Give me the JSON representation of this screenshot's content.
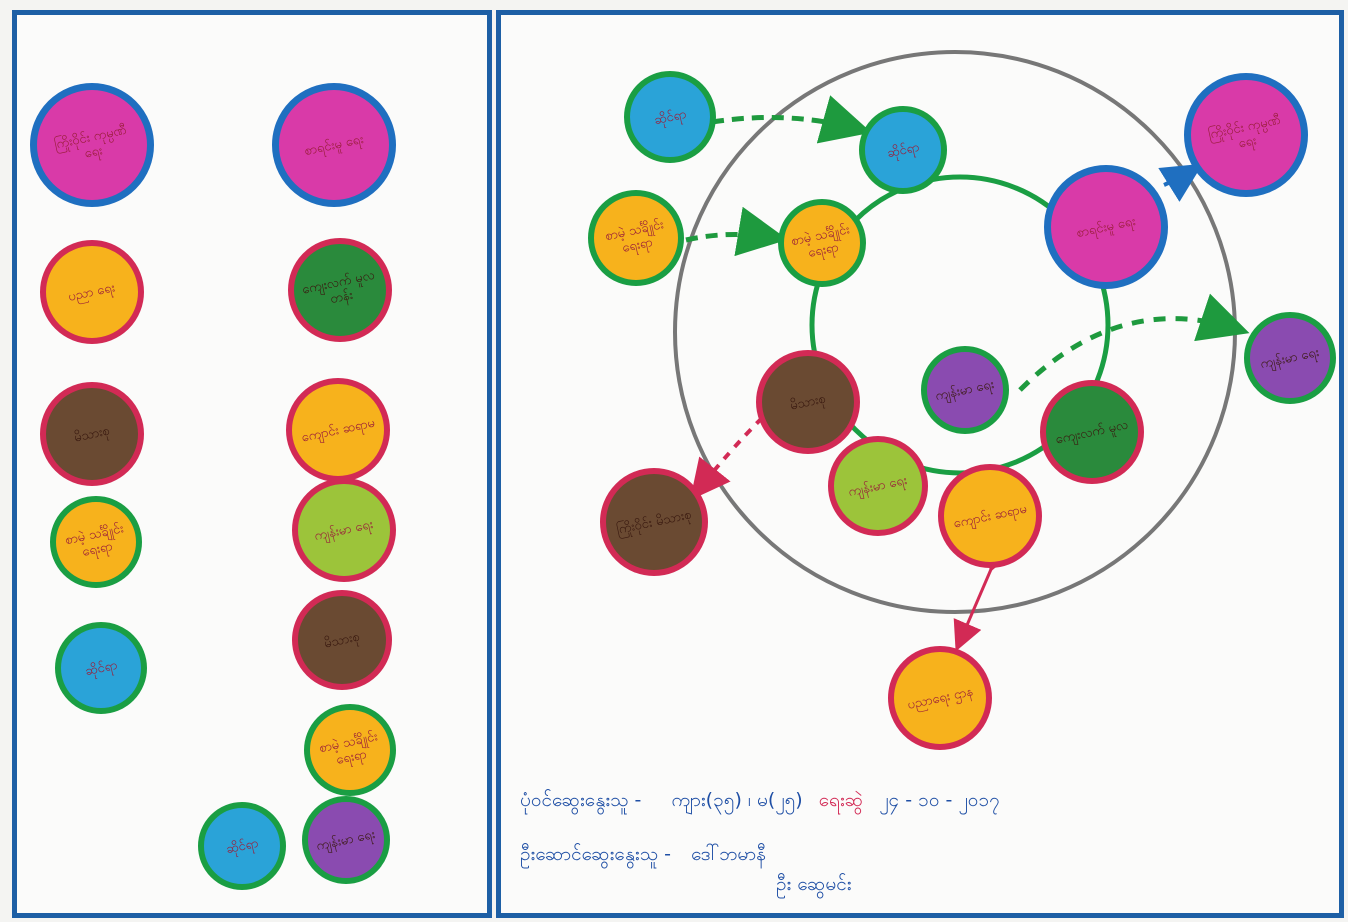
{
  "colors": {
    "panel_border": "#1d5fa5",
    "magenta": "#d93aa8",
    "orange": "#f7b21c",
    "brown": "#6a4a32",
    "green": "#2a8a3c",
    "lime": "#9cc43a",
    "blue": "#2aa3d8",
    "purple": "#8a4bb0",
    "ring_blue": "#1f6fc0",
    "ring_red": "#d22a55",
    "ring_green": "#1a9e43",
    "arrow_red": "#d22a55",
    "arrow_green": "#1e9a3e",
    "outer_ring": "#777777"
  },
  "left_panel": {
    "nodes": [
      {
        "id": "L1",
        "label": "ကြိုးဝိုင်း ကုမ္ပဏီ ရေး",
        "fill": "magenta",
        "ring": "ring_blue"
      },
      {
        "id": "L2",
        "label": "ပညာ ရေး",
        "fill": "orange",
        "ring": "ring_red"
      },
      {
        "id": "L3",
        "label": "မိသားစု",
        "fill": "brown",
        "ring": "ring_red"
      },
      {
        "id": "L4",
        "label": "စာမဲ့ သင်္ချိုင်း ရေးရာ",
        "fill": "orange",
        "ring": "ring_green"
      },
      {
        "id": "L5",
        "label": "ဆိုင်ရာ",
        "fill": "blue",
        "ring": "ring_green"
      },
      {
        "id": "R1",
        "label": "စာရင်းမူ ရေး",
        "fill": "magenta",
        "ring": "ring_blue"
      },
      {
        "id": "R2",
        "label": "ကျေးလက် မူလတန်း",
        "fill": "green",
        "ring": "ring_red"
      },
      {
        "id": "R3",
        "label": "ကျောင်း ဆရာမ",
        "fill": "orange",
        "ring": "ring_red"
      },
      {
        "id": "R4",
        "label": "ကျန်းမာ ရေး",
        "fill": "lime",
        "ring": "ring_red"
      },
      {
        "id": "R5",
        "label": "မိသားစု",
        "fill": "brown",
        "ring": "ring_red"
      },
      {
        "id": "R6",
        "label": "စာမဲ့ သင်္ချိုင်း ရေးရာ",
        "fill": "orange",
        "ring": "ring_green"
      },
      {
        "id": "R7",
        "label": "ဆိုင်ရာ",
        "fill": "blue",
        "ring": "ring_green"
      },
      {
        "id": "R8",
        "label": "ကျန်းမာ ရေး",
        "fill": "purple",
        "ring": "ring_green"
      }
    ]
  },
  "right_panel": {
    "nodes": [
      {
        "id": "A",
        "label": "ဆိုင်ရာ",
        "fill": "blue",
        "ring": "ring_green"
      },
      {
        "id": "B",
        "label": "ဆိုင်ရာ",
        "fill": "blue",
        "ring": "ring_green"
      },
      {
        "id": "C",
        "label": "စာမဲ့ သင်္ချိုင်း ရေးရာ",
        "fill": "orange",
        "ring": "ring_green"
      },
      {
        "id": "D",
        "label": "စာမဲ့ သင်္ချိုင်း ရေးရာ",
        "fill": "orange",
        "ring": "ring_green"
      },
      {
        "id": "E",
        "label": "စာရင်းမူ ရေး",
        "fill": "magenta",
        "ring": "ring_blue"
      },
      {
        "id": "F",
        "label": "ကြိုးဝိုင်း ကုမ္ပဏီ ရေး",
        "fill": "magenta",
        "ring": "ring_blue"
      },
      {
        "id": "G",
        "label": "ကျန်းမာ ရေး",
        "fill": "purple",
        "ring": "ring_green"
      },
      {
        "id": "H",
        "label": "ကျန်းမာ ရေး",
        "fill": "purple",
        "ring": "ring_green"
      },
      {
        "id": "I",
        "label": "မိသားစု",
        "fill": "brown",
        "ring": "ring_red"
      },
      {
        "id": "J",
        "label": "ကျေးလက် မူလ",
        "fill": "green",
        "ring": "ring_red"
      },
      {
        "id": "K",
        "label": "ကြိုးဝိုင်း မိသားစု",
        "fill": "brown",
        "ring": "ring_red"
      },
      {
        "id": "L",
        "label": "ကျန်းမာ ရေး",
        "fill": "lime",
        "ring": "ring_red"
      },
      {
        "id": "M",
        "label": "ကျောင်း ဆရာမ",
        "fill": "orange",
        "ring": "ring_red"
      },
      {
        "id": "N",
        "label": "ပညာရေး ဌာန",
        "fill": "orange",
        "ring": "ring_red"
      }
    ],
    "caption": {
      "line1_a": "ပုံဝင်ဆွေးနွေးသူ -",
      "line1_b": "ကျား(၃၅) ၊ မ(၂၅)",
      "line1_c": "ရေးဆွဲ",
      "line1_d": "၂၄ - ၁၀ - ၂၀၁၇",
      "line2_a": "ဦးဆောင်ဆွေးနွေးသူ -",
      "line2_b": "ဒေါ်ဘမာနီ",
      "line3": "ဦး ဆွေမင်း"
    }
  }
}
